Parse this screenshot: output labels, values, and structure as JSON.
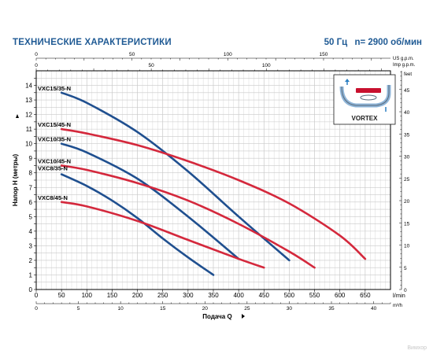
{
  "header": {
    "title": "ТЕХНИЧЕСКИЕ ХАРАКТЕРИСТИКИ",
    "frequency": "50 Гц",
    "speed": "n= 2900 об/мин"
  },
  "inset": {
    "label": "VORTEX"
  },
  "watermark": "Вимхор",
  "colors": {
    "blue": "#1f4f8f",
    "red": "#d4283c",
    "grid": "#c9c9c9",
    "axis": "#000000"
  },
  "chart_data": {
    "type": "line",
    "title": "",
    "xlabel": "Подача Q",
    "ylabel": "Напор H (метры)",
    "xlim": [
      0,
      700
    ],
    "ylim": [
      0,
      15
    ],
    "x_unit": "l/min",
    "x_ticks": [
      0,
      50,
      100,
      150,
      200,
      250,
      300,
      350,
      400,
      450,
      500,
      550,
      600,
      650
    ],
    "y_ticks": [
      0,
      0.5,
      1,
      1.5,
      2,
      2.5,
      3,
      3.5,
      4,
      4.5,
      5,
      5.5,
      6,
      6.5,
      7,
      7.5,
      8,
      8.5,
      9,
      9.5,
      10,
      10.5,
      11,
      11.5,
      12,
      12.5,
      13,
      13.5,
      14,
      14.5
    ],
    "y_tick_labels": [
      "0",
      "",
      "1",
      "",
      "2",
      "",
      "3",
      "",
      "4",
      "",
      "5",
      "",
      "6",
      "",
      "7",
      "",
      "8",
      "",
      "9",
      "",
      "10",
      "",
      "11",
      "",
      "12",
      "",
      "13",
      "",
      "14",
      ""
    ],
    "secondary_axes": {
      "m3h": {
        "unit": "m³/h",
        "ticks": [
          0,
          5,
          10,
          15,
          20,
          25,
          30,
          35,
          40
        ]
      },
      "feet": {
        "unit": "feet",
        "ticks": [
          0,
          5,
          10,
          15,
          20,
          25,
          30,
          35,
          40,
          45
        ]
      },
      "us_gpm": {
        "unit": "US g.p.m.",
        "ticks": [
          0,
          50,
          100,
          150
        ]
      },
      "imp_gpm": {
        "unit": "Imp g.p.m.",
        "ticks": [
          0,
          50,
          100
        ]
      }
    },
    "grid": true,
    "series": [
      {
        "name": "VXC15/35-N",
        "color": "blue",
        "label_y": 13.5,
        "x": [
          50,
          100,
          200,
          300,
          400,
          500
        ],
        "y": [
          13.5,
          12.8,
          10.8,
          8.1,
          5.0,
          2.0
        ]
      },
      {
        "name": "VXC15/45-N",
        "color": "red",
        "label_y": 11.0,
        "x": [
          50,
          100,
          200,
          300,
          400,
          500,
          600,
          650
        ],
        "y": [
          11.0,
          10.7,
          9.9,
          8.8,
          7.5,
          5.9,
          3.7,
          2.1
        ]
      },
      {
        "name": "VXC10/35-N",
        "color": "blue",
        "label_y": 10.0,
        "x": [
          50,
          100,
          200,
          300,
          400
        ],
        "y": [
          10.0,
          9.4,
          7.6,
          5.0,
          2.1
        ]
      },
      {
        "name": "VXC10/45-N",
        "color": "red",
        "label_y": 8.5,
        "x": [
          50,
          100,
          200,
          300,
          400,
          500,
          550
        ],
        "y": [
          8.5,
          8.2,
          7.3,
          6.1,
          4.5,
          2.6,
          1.5
        ]
      },
      {
        "name": "VXC8/35-N",
        "color": "blue",
        "label_y": 8.0,
        "x": [
          50,
          100,
          150,
          200,
          250,
          300,
          350
        ],
        "y": [
          7.9,
          7.1,
          6.1,
          4.9,
          3.5,
          2.2,
          1.0
        ]
      },
      {
        "name": "VXC8/45-N",
        "color": "red",
        "label_y": 6.0,
        "x": [
          50,
          100,
          200,
          300,
          400,
          450
        ],
        "y": [
          6.0,
          5.7,
          4.7,
          3.4,
          2.1,
          1.5
        ]
      }
    ]
  }
}
